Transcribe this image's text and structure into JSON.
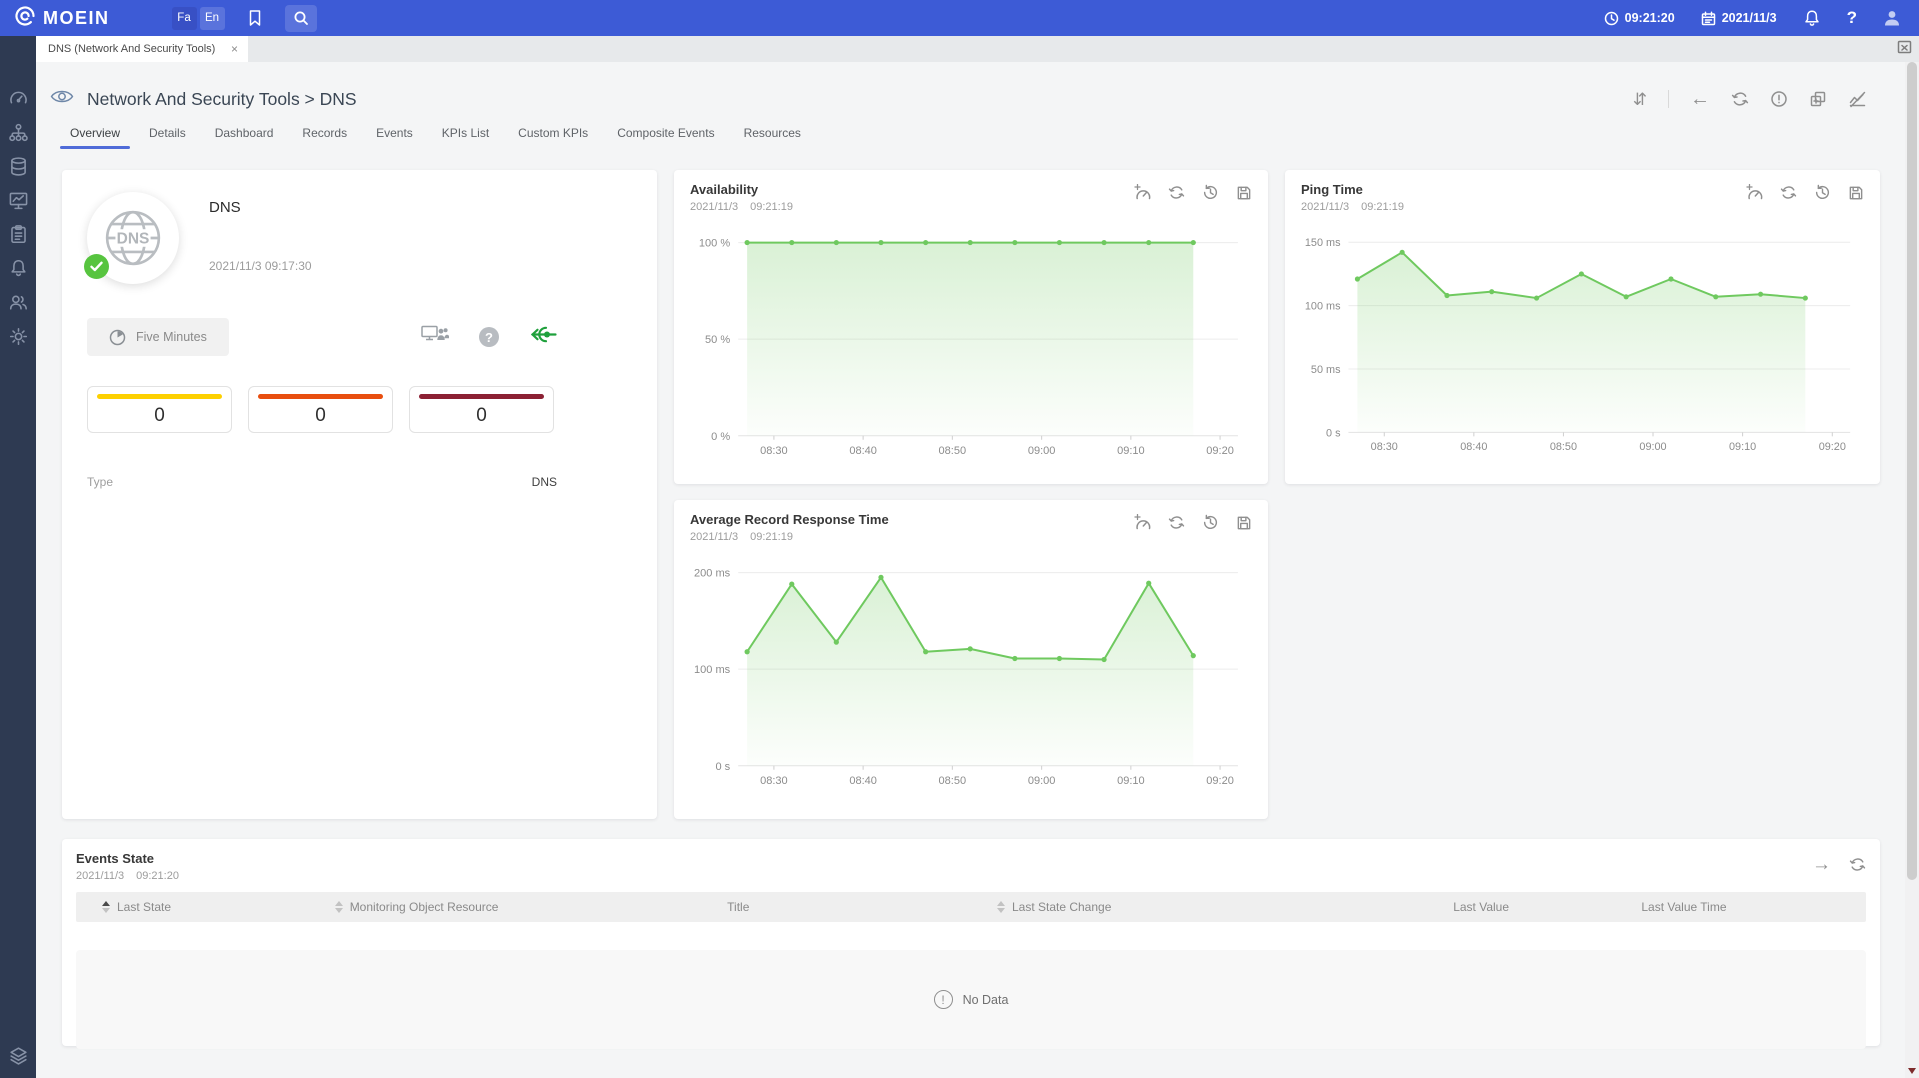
{
  "colors": {
    "topbar_blue": "#3d5bd6",
    "sidebar_dark": "#2e3a52",
    "accent_blue": "#4f6bd8",
    "chart_green": "#6fc95f",
    "ok_green": "#57c43f",
    "counter_colors": [
      "#fdd000",
      "#e84e0f",
      "#8c2134"
    ]
  },
  "topbar": {
    "brand": "MOEIN",
    "lang": {
      "fa": "Fa",
      "en": "En"
    },
    "time": "09:21:20",
    "date": "2021/11/3"
  },
  "tabbar": {
    "active_tab": "DNS (Network And Security Tools)",
    "close_glyph": "×"
  },
  "header": {
    "title": "Network And Security Tools > DNS",
    "active_tab": "Overview",
    "nav_tabs": [
      "Overview",
      "Details",
      "Dashboard",
      "Records",
      "Events",
      "KPIs List",
      "Custom KPIs",
      "Composite Events",
      "Resources"
    ]
  },
  "info_card": {
    "title": "DNS",
    "avatar_text": "DNS",
    "timestamp": "2021/11/3 09:17:30",
    "interval_button": "Five Minutes",
    "counters": [
      {
        "value": "0",
        "color": "#fdd000"
      },
      {
        "value": "0",
        "color": "#e84e0f"
      },
      {
        "value": "0",
        "color": "#8c2134"
      }
    ],
    "type_label": "Type",
    "type_value": "DNS"
  },
  "chart_data": [
    {
      "id": "availability",
      "type": "area",
      "title": "Availability",
      "date": "2021/11/3",
      "time": "09:21:19",
      "x": [
        "08:27",
        "08:32",
        "08:37",
        "08:42",
        "08:47",
        "08:52",
        "08:57",
        "09:02",
        "09:07",
        "09:12",
        "09:17"
      ],
      "values": [
        100,
        100,
        100,
        100,
        100,
        100,
        100,
        100,
        100,
        100,
        100
      ],
      "x_ticks": [
        "08:30",
        "08:40",
        "08:50",
        "09:00",
        "09:10",
        "09:20"
      ],
      "x_range": [
        "08:26",
        "09:22"
      ],
      "y_ticks": [
        [
          0,
          "0 %"
        ],
        [
          50,
          "50 %"
        ],
        [
          100,
          "100 %"
        ]
      ],
      "ylim": [
        0,
        100
      ],
      "ylabel": "",
      "grid": true,
      "legend": "none",
      "line_color": "#6fc95f"
    },
    {
      "id": "ping",
      "type": "area",
      "title": "Ping Time",
      "date": "2021/11/3",
      "time": "09:21:19",
      "x": [
        "08:27",
        "08:32",
        "08:37",
        "08:42",
        "08:47",
        "08:52",
        "08:57",
        "09:02",
        "09:07",
        "09:12",
        "09:17"
      ],
      "values": [
        121,
        142,
        108,
        111,
        106,
        125,
        107,
        121,
        107,
        109,
        106
      ],
      "x_ticks": [
        "08:30",
        "08:40",
        "08:50",
        "09:00",
        "09:10",
        "09:20"
      ],
      "x_range": [
        "08:26",
        "09:22"
      ],
      "y_ticks": [
        [
          0,
          "0 s"
        ],
        [
          50,
          "50 ms"
        ],
        [
          100,
          "100 ms"
        ],
        [
          150,
          "150 ms"
        ]
      ],
      "ylim": [
        0,
        150
      ],
      "ylabel": "",
      "grid": true,
      "legend": "none",
      "line_color": "#6fc95f"
    },
    {
      "id": "arrt",
      "type": "area",
      "title": "Average Record Response Time",
      "date": "2021/11/3",
      "time": "09:21:19",
      "x": [
        "08:27",
        "08:32",
        "08:37",
        "08:42",
        "08:47",
        "08:52",
        "08:57",
        "09:02",
        "09:07",
        "09:12",
        "09:17"
      ],
      "values": [
        118,
        188,
        128,
        195,
        118,
        121,
        111,
        111,
        110,
        189,
        114
      ],
      "x_ticks": [
        "08:30",
        "08:40",
        "08:50",
        "09:00",
        "09:10",
        "09:20"
      ],
      "x_range": [
        "08:26",
        "09:22"
      ],
      "y_ticks": [
        [
          0,
          "0 s"
        ],
        [
          100,
          "100 ms"
        ],
        [
          200,
          "200 ms"
        ]
      ],
      "ylim": [
        0,
        200
      ],
      "ylabel": "",
      "grid": true,
      "legend": "none",
      "line_color": "#6fc95f"
    }
  ],
  "events": {
    "title": "Events State",
    "date": "2021/11/3",
    "time": "09:21:20",
    "columns": [
      {
        "label": "Last State",
        "sortable": true,
        "sorted": "asc",
        "align": "left"
      },
      {
        "label": "Monitoring Object Resource",
        "sortable": true,
        "align": "left"
      },
      {
        "label": "Title",
        "align": "center"
      },
      {
        "label": "Last State Change",
        "sortable": true,
        "align": "left"
      },
      {
        "label": "Last Value",
        "align": "center"
      },
      {
        "label": "Last Value Time",
        "align": "left"
      }
    ],
    "no_data": "No Data",
    "no_data_glyph": "!"
  },
  "icons": {
    "clock-icon": "svg",
    "calendar-icon": "svg",
    "bell-icon": "svg",
    "help-icon": "?",
    "user-icon": "svg",
    "bookmark-icon": "svg",
    "search-icon": "svg",
    "logo-mark": "svg",
    "eye-icon": "svg",
    "sort-vertical-icon": "⇵",
    "back-arrow-icon": "←",
    "refresh-icon": "svg",
    "info-icon": "!",
    "copy-plus-icon": "svg",
    "chart-slash-icon": "svg",
    "gauge-icon": "svg",
    "sitemap-icon": "svg",
    "database-icon": "svg",
    "monitor-icon": "svg",
    "clipboard-icon": "svg",
    "users-icon": "svg",
    "gear-icon": "svg",
    "layers-icon": "svg",
    "globe-dns-icon": "svg",
    "check-icon": "svg",
    "five-minutes-clock-icon": "svg",
    "monitor-users-icon": "svg",
    "question-icon": "?",
    "connection-icon": "svg",
    "gauge-plus-icon": "svg",
    "history-icon": "svg",
    "save-icon": "svg",
    "arrow-right-icon": "→",
    "scroll-down-arrow": "▾",
    "close-icon": "×"
  }
}
